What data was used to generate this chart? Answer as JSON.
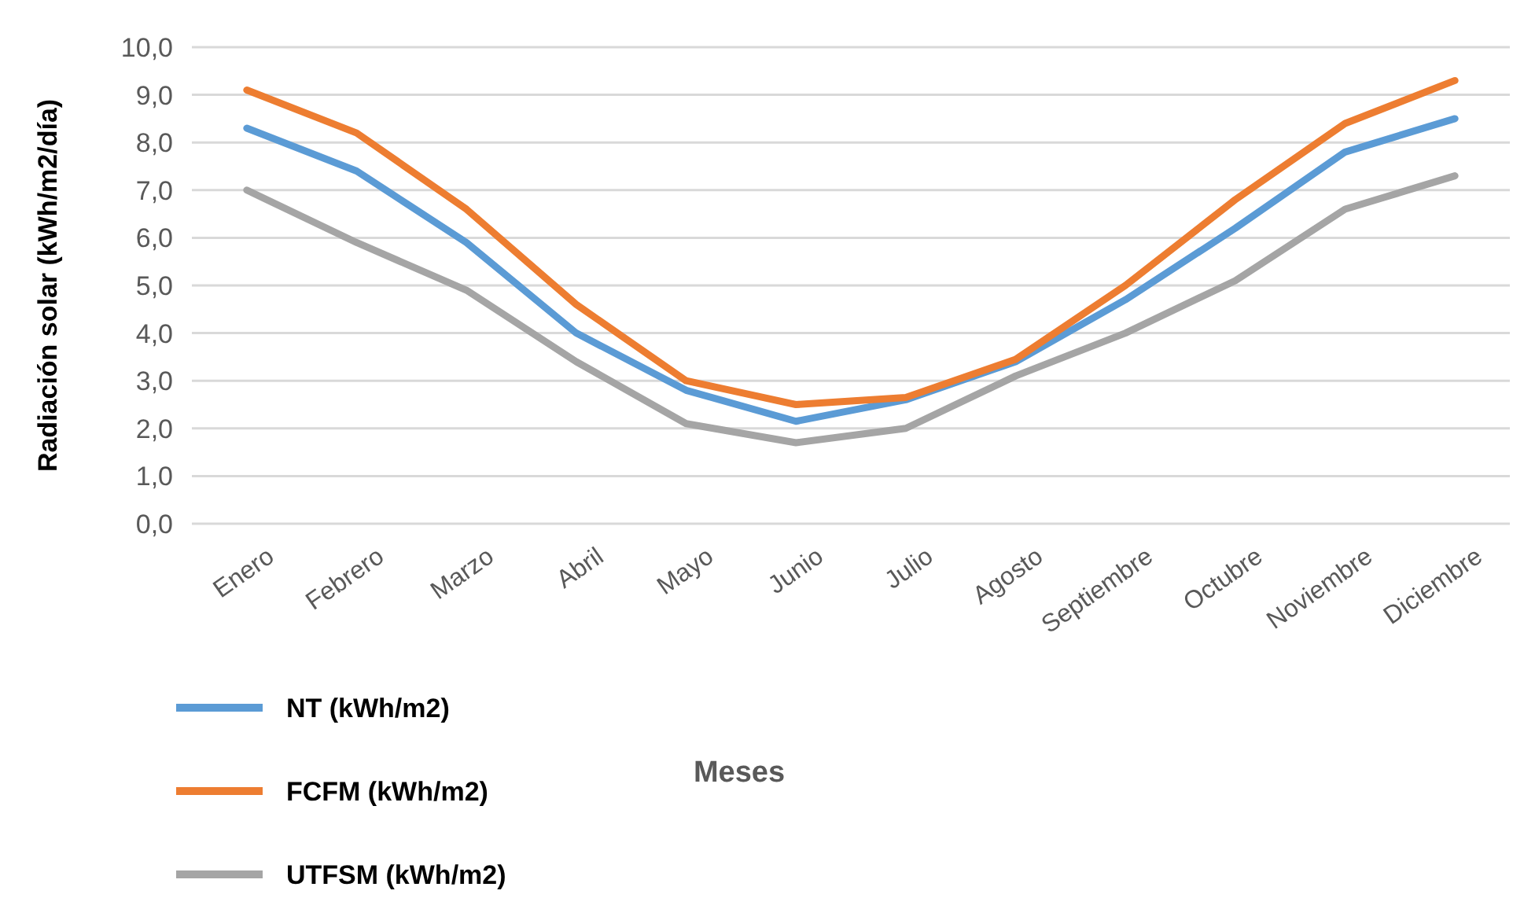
{
  "chart_data": {
    "type": "line",
    "xlabel": "Meses",
    "ylabel": "Radiación solar (kWh/m2/día)",
    "categories": [
      "Enero",
      "Febrero",
      "Marzo",
      "Abril",
      "Mayo",
      "Junio",
      "Julio",
      "Agosto",
      "Septiembre",
      "Octubre",
      "Noviembre",
      "Diciembre"
    ],
    "series": [
      {
        "name": "NT (kWh/m2)",
        "color": "#5b9bd5",
        "values": [
          8.3,
          7.4,
          5.9,
          4.0,
          2.8,
          2.15,
          2.6,
          3.4,
          4.7,
          6.2,
          7.8,
          8.5
        ]
      },
      {
        "name": "FCFM (kWh/m2)",
        "color": "#ed7d31",
        "values": [
          9.1,
          8.2,
          6.6,
          4.6,
          3.0,
          2.5,
          2.65,
          3.45,
          5.0,
          6.8,
          8.4,
          9.3
        ]
      },
      {
        "name": "UTFSM (kWh/m2)",
        "color": "#a5a5a5",
        "values": [
          7.0,
          5.9,
          4.9,
          3.4,
          2.1,
          1.7,
          2.0,
          3.1,
          4.0,
          5.1,
          6.6,
          7.3
        ]
      }
    ],
    "ylim": [
      0,
      10
    ],
    "yticks": [
      {
        "value": 0,
        "label": "0,0"
      },
      {
        "value": 1,
        "label": "1,0"
      },
      {
        "value": 2,
        "label": "2,0"
      },
      {
        "value": 3,
        "label": "3,0"
      },
      {
        "value": 4,
        "label": "4,0"
      },
      {
        "value": 5,
        "label": "5,0"
      },
      {
        "value": 6,
        "label": "6,0"
      },
      {
        "value": 7,
        "label": "7,0"
      },
      {
        "value": 8,
        "label": "8,0"
      },
      {
        "value": 9,
        "label": "9,0"
      },
      {
        "value": 10,
        "label": "10,0"
      }
    ],
    "grid": "y",
    "legend": "bottom left",
    "marker": "none",
    "line_style": "solid"
  }
}
